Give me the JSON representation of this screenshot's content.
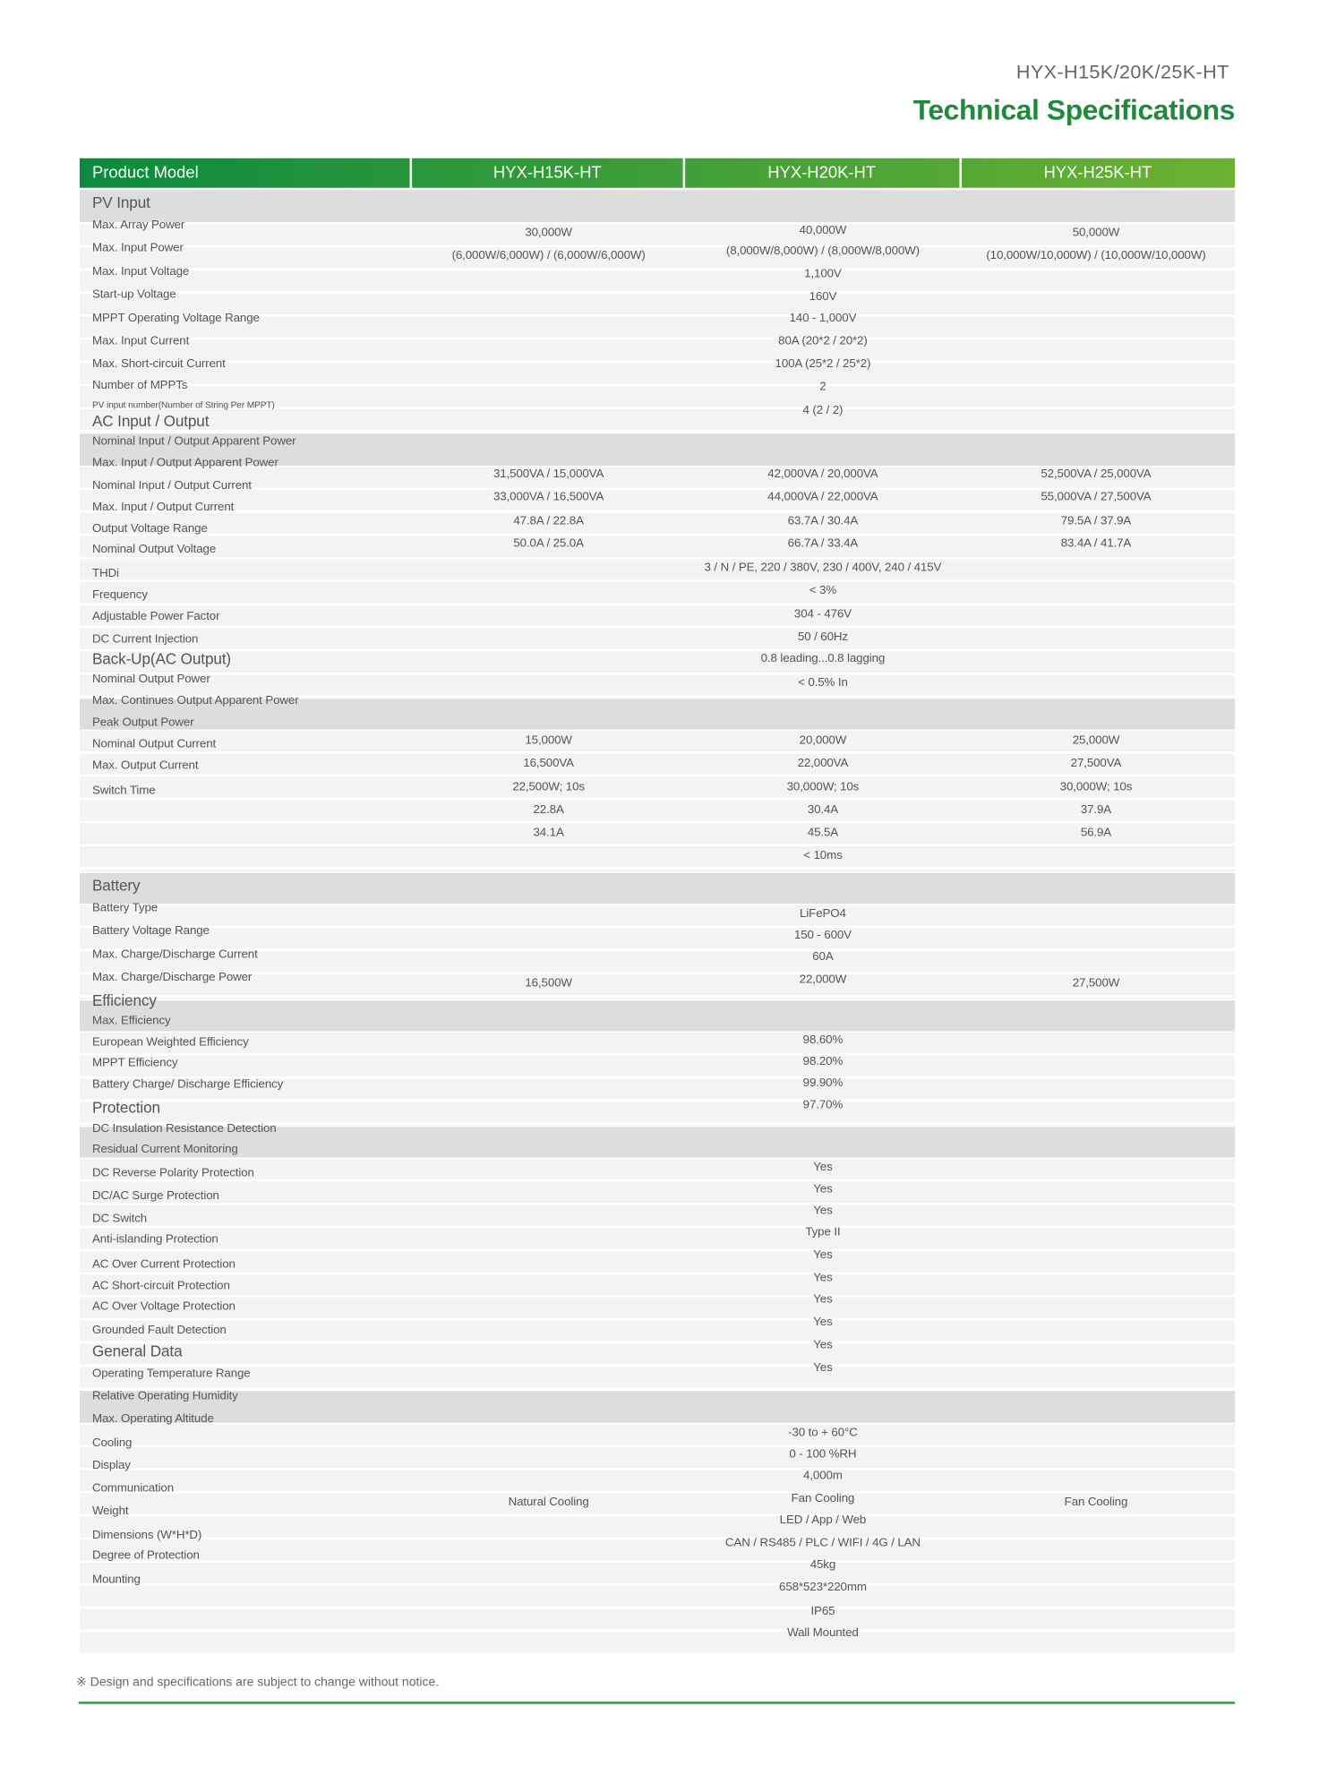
{
  "doc": {
    "subtitle": "HYX-H15K/20K/25K-HT",
    "title": "Technical Specifications",
    "footnote": "※ Design and specifications are subject to change without notice.",
    "accent_color": "#1e8a3c"
  },
  "header": {
    "label": "Product Model",
    "models": [
      "HYX-H15K-HT",
      "HYX-H20K-HT",
      "HYX-H25K-HT"
    ]
  },
  "sections": [
    {
      "title": "PV Input",
      "labels": [
        "Max. Array Power",
        "Max. Input Power",
        "Max. Input Voltage",
        "Start-up Voltage",
        "MPPT Operating Voltage Range",
        "Max. Input Current",
        "Max. Short-circuit Current",
        "Number of MPPTs",
        "PV input number(Number of String Per MPPT)"
      ]
    },
    {
      "title": "AC Input / Output",
      "labels": [
        "Nominal Input / Output Apparent Power",
        "Max. Input / Output Apparent Power",
        "Nominal Input / Output Current",
        "Max. Input / Output Current",
        "Output Voltage Range",
        "Nominal Output Voltage",
        "THDi",
        "Frequency",
        "Adjustable Power Factor",
        "DC Current Injection"
      ]
    },
    {
      "title": "Back-Up(AC Output)",
      "labels": [
        "Nominal Output Power",
        "Max. Continues Output Apparent Power",
        "Peak Output Power",
        "Nominal Output Current",
        "Max. Output Current",
        "Switch Time"
      ]
    },
    {
      "title": "Battery",
      "labels": [
        "Battery Type",
        "Battery Voltage Range",
        "Max. Charge/Discharge Current",
        "Max. Charge/Discharge Power"
      ]
    },
    {
      "title": "Efficiency",
      "labels": [
        "Max. Efficiency",
        "European Weighted Efficiency",
        "MPPT Efficiency",
        "Battery Charge/ Discharge Efficiency"
      ]
    },
    {
      "title": "Protection",
      "labels": [
        "DC Insulation Resistance Detection",
        "Residual Current Monitoring",
        "DC Reverse Polarity Protection",
        "DC/AC Surge Protection",
        "DC Switch",
        "Anti-islanding Protection",
        "AC Over Current Protection",
        "AC Short-circuit Protection",
        "AC Over Voltage Protection",
        "Grounded Fault Detection"
      ]
    },
    {
      "title": "General Data",
      "labels": [
        "Operating Temperature Range",
        "Relative Operating Humidity",
        "Max. Operating Altitude",
        "Cooling",
        "Display",
        "Communication",
        "Weight",
        "Dimensions (W*H*D)",
        "Degree of Protection",
        "Mounting"
      ]
    }
  ],
  "values": [
    [
      {
        "c1": "30,000W",
        "c2": "40,000W",
        "c3": "50,000W"
      },
      {
        "c1": "(6,000W/6,000W) / (6,000W/6,000W)",
        "c2": "(8,000W/8,000W) / (8,000W/8,000W)",
        "c3": "(10,000W/10,000W) / (10,000W/10,000W)"
      },
      {
        "all": "1,100V"
      },
      {
        "all": "160V"
      },
      {
        "all": "140 - 1,000V"
      },
      {
        "all": "80A (20*2 / 20*2)"
      },
      {
        "all": "100A (25*2 / 25*2)"
      },
      {
        "all": "2"
      },
      {
        "all": "4 (2 / 2)"
      }
    ],
    [
      {
        "c1": "31,500VA / 15,000VA",
        "c2": "42,000VA / 20,000VA",
        "c3": "52,500VA / 25,000VA"
      },
      {
        "c1": "33,000VA / 16,500VA",
        "c2": "44,000VA / 22,000VA",
        "c3": "55,000VA / 27,500VA"
      },
      {
        "c1": "47.8A / 22.8A",
        "c2": "63.7A / 30.4A",
        "c3": "79.5A / 37.9A"
      },
      {
        "c1": "50.0A / 25.0A",
        "c2": "66.7A / 33.4A",
        "c3": "83.4A / 41.7A"
      },
      {
        "all": "3 / N / PE, 220 / 380V, 230 / 400V, 240 / 415V"
      },
      {
        "all": "< 3%"
      },
      {
        "all": "304 - 476V"
      },
      {
        "all": "50 / 60Hz"
      },
      {
        "all": "0.8 leading...0.8 lagging"
      },
      {
        "all": "< 0.5% In"
      }
    ],
    [
      {
        "c1": "15,000W",
        "c2": "20,000W",
        "c3": "25,000W"
      },
      {
        "c1": "16,500VA",
        "c2": "22,000VA",
        "c3": "27,500VA"
      },
      {
        "c1": "22,500W; 10s",
        "c2": "30,000W; 10s",
        "c3": "30,000W; 10s"
      },
      {
        "c1": "22.8A",
        "c2": "30.4A",
        "c3": "37.9A"
      },
      {
        "c1": "34.1A",
        "c2": "45.5A",
        "c3": "56.9A"
      },
      {
        "all": "< 10ms"
      }
    ],
    [
      {
        "all": "LiFePO4"
      },
      {
        "all": "150 - 600V"
      },
      {
        "all": "60A"
      },
      {
        "c1": "16,500W",
        "c2": "22,000W",
        "c3": "27,500W"
      }
    ],
    [
      {
        "all": "98.60%"
      },
      {
        "all": "98.20%"
      },
      {
        "all": "99.90%"
      },
      {
        "all": "97.70%"
      }
    ],
    [
      {
        "all": "Yes"
      },
      {
        "all": "Yes"
      },
      {
        "all": "Yes"
      },
      {
        "all": "Type II"
      },
      {
        "all": "Yes"
      },
      {
        "all": "Yes"
      },
      {
        "all": "Yes"
      },
      {
        "all": "Yes"
      },
      {
        "all": "Yes"
      },
      {
        "all": "Yes"
      }
    ],
    [
      {
        "all": "-30 to + 60°C"
      },
      {
        "all": "0 - 100 %RH"
      },
      {
        "all": "4,000m"
      },
      {
        "c1": "Natural Cooling",
        "c2": "Fan Cooling",
        "c3": "Fan Cooling"
      },
      {
        "all": "LED / App / Web"
      },
      {
        "all": "CAN / RS485 / PLC / WIFI / 4G / LAN"
      },
      {
        "all": "45kg"
      },
      {
        "all": "658*523*220mm"
      },
      {
        "all": "IP65"
      },
      {
        "all": "Wall Mounted"
      }
    ]
  ]
}
